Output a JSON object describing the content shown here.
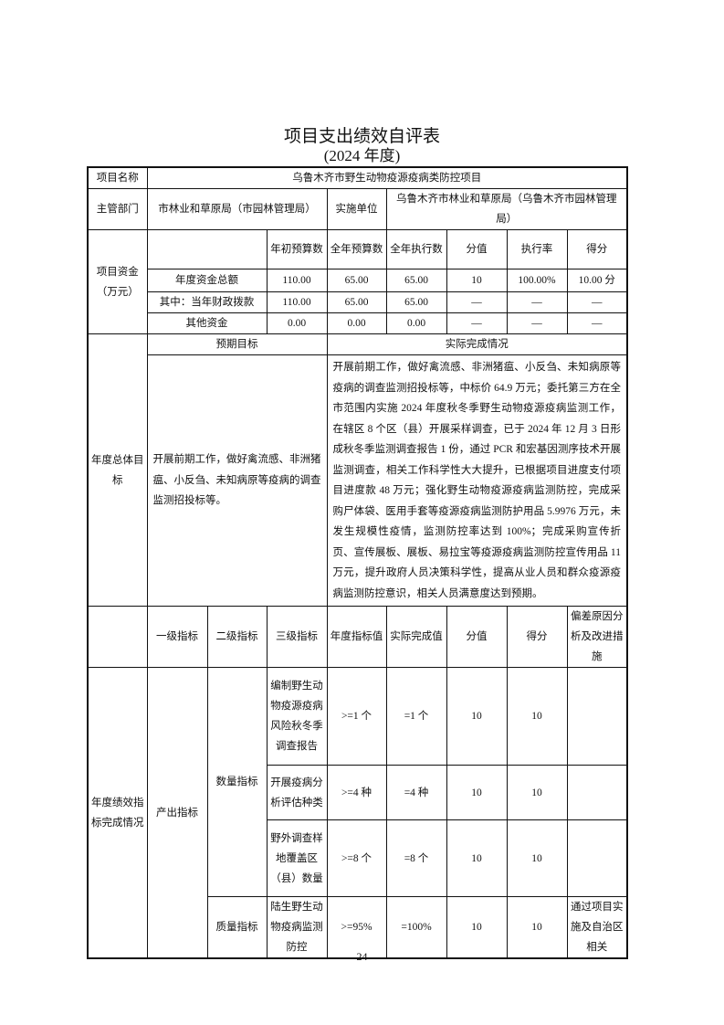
{
  "title": "项目支出绩效自评表",
  "subtitle": "(2024 年度)",
  "project_name_label": "项目名称",
  "project_name": "乌鲁木齐市野生动物疫源疫病类防控项目",
  "dept_label": "主管部门",
  "dept": "市林业和草原局（市园林管理局）",
  "impl_label": "实施单位",
  "impl": "乌鲁木齐市林业和草原局（乌鲁木齐市园林管理局）",
  "funds": {
    "label": "项目资金（万元）",
    "headers": [
      "年初预算数",
      "全年预算数",
      "全年执行数",
      "分值",
      "执行率",
      "得分"
    ],
    "rows": [
      [
        "年度资金总额",
        "110.00",
        "65.00",
        "65.00",
        "10",
        "100.00%",
        "10.00 分"
      ],
      [
        "其中：当年财政拨款",
        "110.00",
        "65.00",
        "65.00",
        "—",
        "—",
        "—"
      ],
      [
        "其他资金",
        "0.00",
        "0.00",
        "0.00",
        "—",
        "—",
        "—"
      ]
    ]
  },
  "goals": {
    "label": "年度总体目标",
    "expected_header": "预期目标",
    "actual_header": "实际完成情况",
    "expected": "开展前期工作，做好禽流感、非洲猪瘟、小反刍、未知病原等疫病的调查监测招投标等。",
    "actual": "开展前期工作，做好禽流感、非洲猪瘟、小反刍、未知病原等疫病的调查监测招投标等，中标价 64.9 万元；委托第三方在全市范围内实施 2024 年度秋冬季野生动物疫源疫病监测工作，在辖区 8 个区（县）开展采样调查，已于 2024 年 12 月 3 日形成秋冬季监测调查报告 1 份，通过 PCR 和宏基因测序技术开展监测调查，相关工作科学性大大提升，已根据项目进度支付项目进度款 48 万元；强化野生动物疫源疫病监测防控，完成采购尸体袋、医用手套等疫源疫病监测防护用品 5.9976 万元，未发生规模性疫情，监测防控率达到 100%；完成采购宣传折页、宣传展板、展板、易拉宝等疫源疫病监测防控宣传用品 11 万元，提升政府人员决策科学性，提高从业人员和群众疫源疫病监测防控意识，相关人员满意度达到预期。"
  },
  "metrics": {
    "label": "年度绩效指标完成情况",
    "headers": [
      "一级指标",
      "二级指标",
      "三级指标",
      "年度指标值",
      "实际完成值",
      "分值",
      "得分",
      "偏差原因分析及改进措施"
    ],
    "level1": "产出指标",
    "quantity_label": "数量指标",
    "quality_label": "质量指标",
    "rows": [
      {
        "name": "编制野生动物疫源疫病风险秋冬季调查报告",
        "target": ">=1 个",
        "actual": "=1 个",
        "score_value": "10",
        "score": "10",
        "reason": ""
      },
      {
        "name": "开展疫病分析评估种类",
        "target": ">=4 种",
        "actual": "=4 种",
        "score_value": "10",
        "score": "10",
        "reason": ""
      },
      {
        "name": "野外调查样地覆盖区（县）数量",
        "target": ">=8 个",
        "actual": "=8 个",
        "score_value": "10",
        "score": "10",
        "reason": ""
      },
      {
        "name": "陆生野生动物疫病监测防控",
        "target": ">=95%",
        "actual": "=100%",
        "score_value": "10",
        "score": "10",
        "reason": "通过项目实施及自治区相关"
      }
    ]
  },
  "page_number": "24"
}
